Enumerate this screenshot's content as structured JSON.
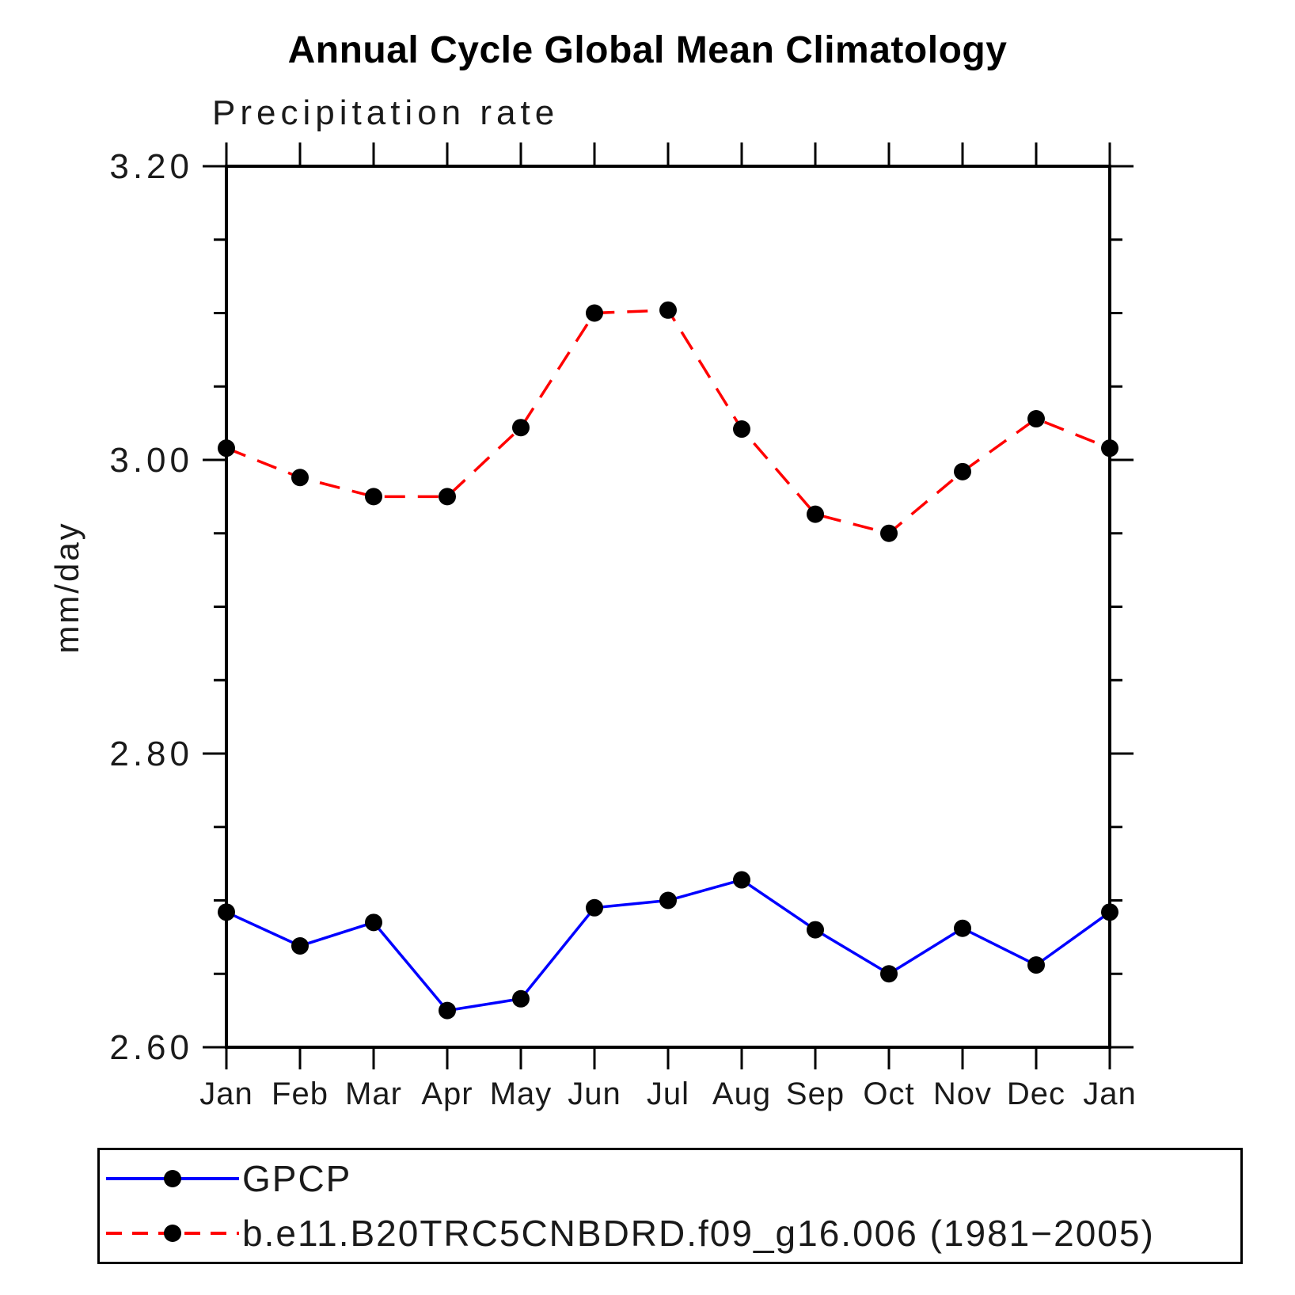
{
  "title": "Annual Cycle Global Mean Climatology",
  "chart_data": {
    "type": "line",
    "title": "Annual Cycle Global Mean Climatology",
    "subtitle": "Precipitation rate",
    "ylabel": "mm/day",
    "categories": [
      "Jan",
      "Feb",
      "Mar",
      "Apr",
      "May",
      "Jun",
      "Jul",
      "Aug",
      "Sep",
      "Oct",
      "Nov",
      "Dec",
      "Jan"
    ],
    "ylim": [
      2.6,
      3.2
    ],
    "ytick_major": [
      2.6,
      2.8,
      3.0,
      3.2
    ],
    "ytick_labels": [
      "2.60",
      "2.80",
      "3.00",
      "3.20"
    ],
    "ytick_minor_step": 0.05,
    "grid": false,
    "legend_position": "bottom-left-box",
    "marker": "filled-circle",
    "marker_color": "#000000",
    "series": [
      {
        "name": "GPCP",
        "color": "#0000ff",
        "style": "solid",
        "values": [
          2.692,
          2.669,
          2.685,
          2.625,
          2.633,
          2.695,
          2.7,
          2.714,
          2.68,
          2.65,
          2.681,
          2.656,
          2.692
        ]
      },
      {
        "name": "b.e11.B20TRC5CNBDRD.f09_g16.006 (1981−2005)",
        "color": "#ff0000",
        "style": "dashed",
        "values": [
          3.008,
          2.988,
          2.975,
          2.975,
          3.022,
          3.1,
          3.102,
          3.021,
          2.963,
          2.95,
          2.992,
          3.028,
          3.008
        ]
      }
    ]
  }
}
